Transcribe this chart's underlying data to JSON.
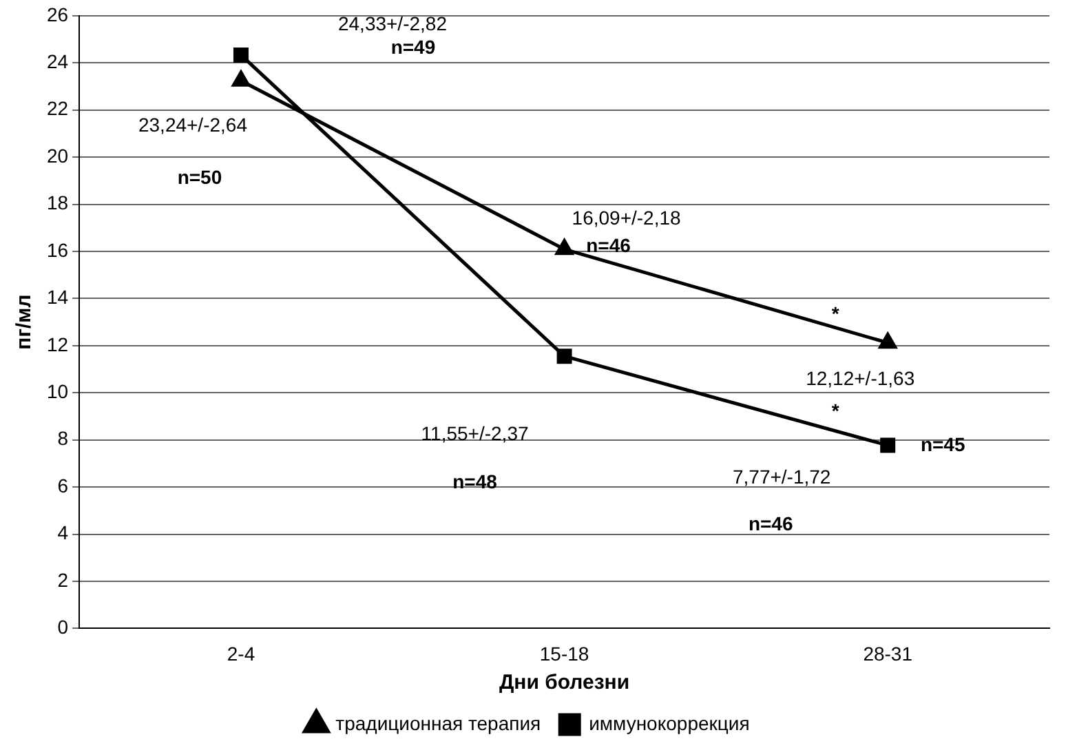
{
  "chart_data": {
    "type": "line",
    "xlabel": "Дни болезни",
    "ylabel": "пг/мл",
    "categories": [
      "2-4",
      "15-18",
      "28-31"
    ],
    "series": [
      {
        "name": "традиционная терапия",
        "color": "#000000",
        "marker": "triangle",
        "values": [
          23.24,
          16.09,
          12.12
        ]
      },
      {
        "name": "иммунокоррекция",
        "color": "#000000",
        "marker": "square",
        "values": [
          24.33,
          11.55,
          7.77
        ]
      }
    ],
    "ylim": [
      0,
      26
    ],
    "yticks": [
      0,
      2,
      4,
      6,
      8,
      10,
      12,
      14,
      16,
      18,
      20,
      22,
      24,
      26
    ],
    "grid": "y",
    "legend": "bottom",
    "line_style": "solid",
    "annotations": [
      "24,33+/-2,82",
      "n=49",
      "23,24+/-2,64",
      "n=50",
      "16,09+/-2,18",
      "n=46",
      "11,55+/-2,37",
      "n=48",
      "*",
      "12,12+/-1,63",
      "n=45",
      "*",
      "7,77+/-1,72",
      "n=46"
    ]
  }
}
